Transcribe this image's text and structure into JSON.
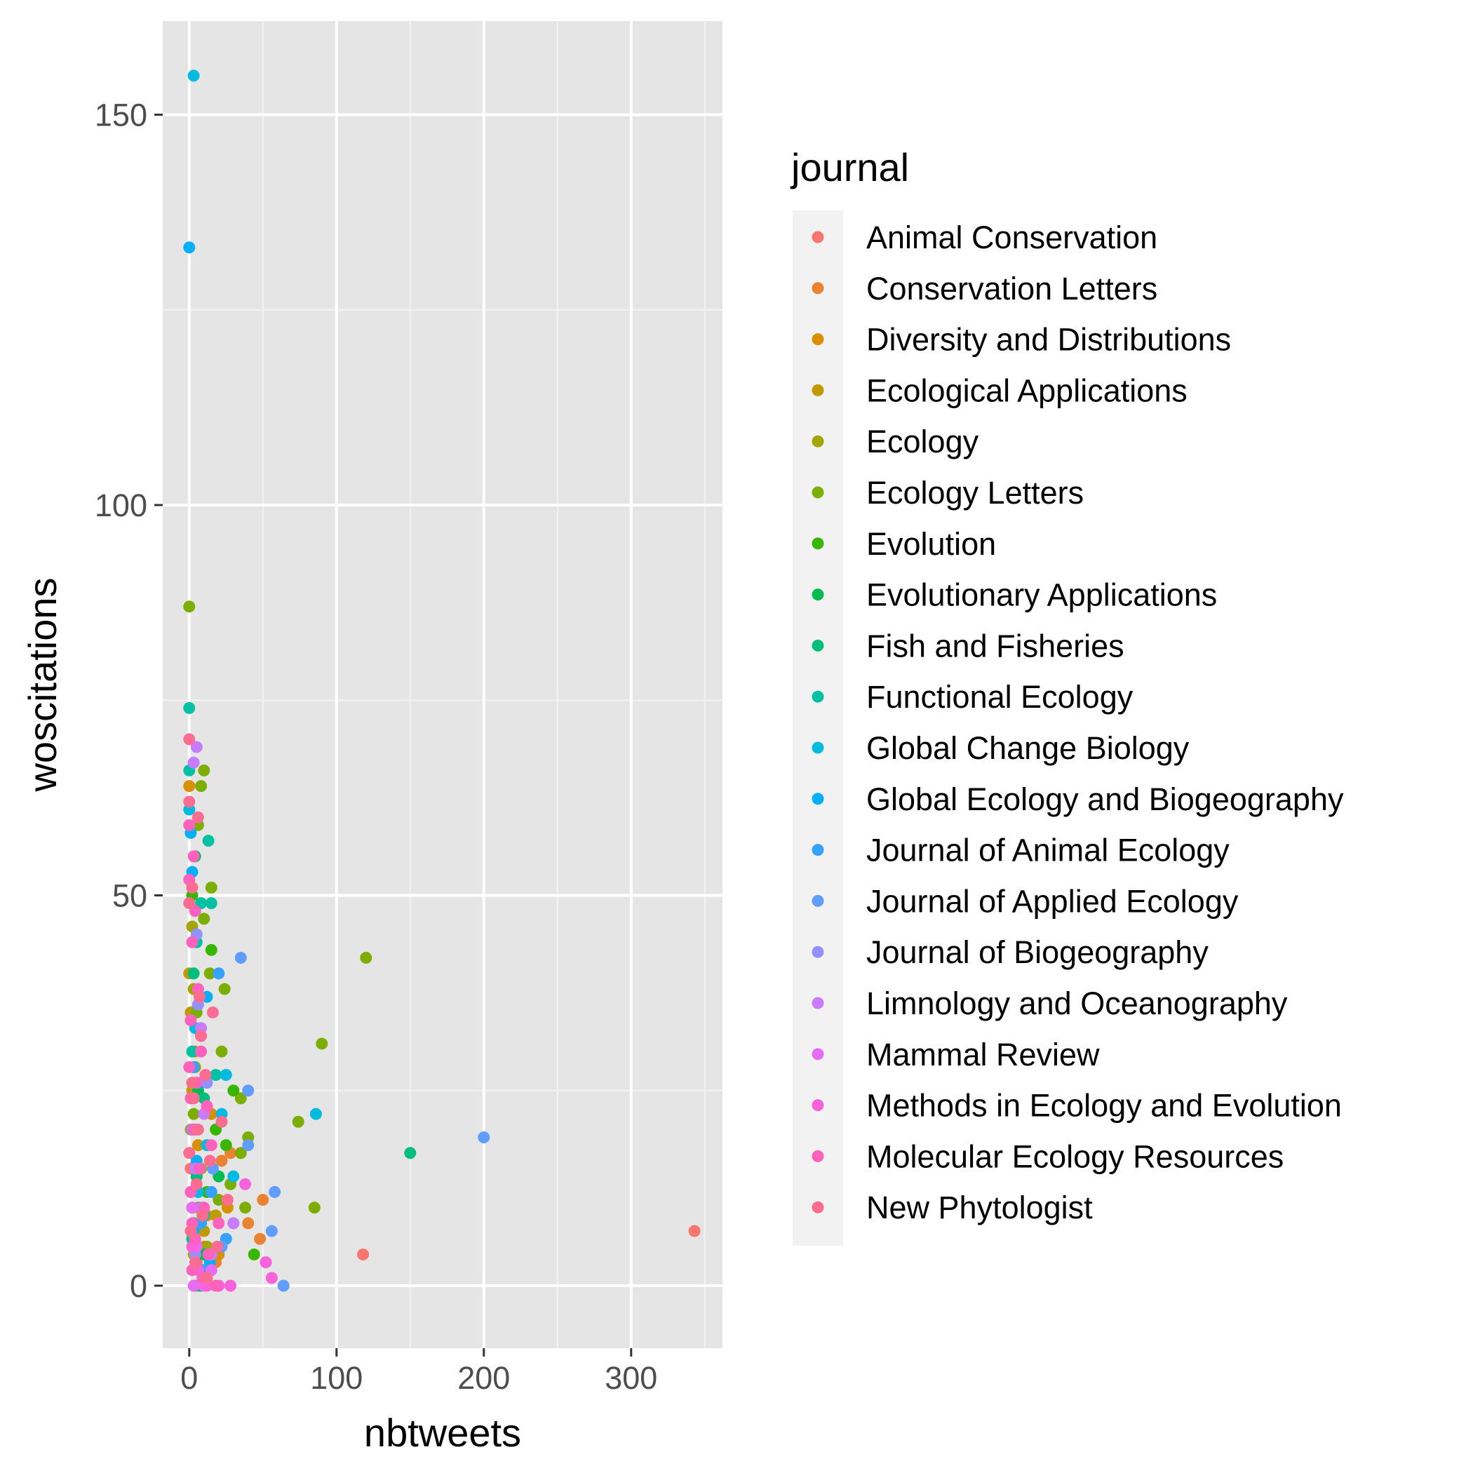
{
  "chart_data": {
    "type": "scatter",
    "xlabel": "nbtweets",
    "ylabel": "woscitations",
    "xlim": [
      -18,
      362
    ],
    "ylim": [
      -8,
      162
    ],
    "x_ticks": [
      0,
      100,
      200,
      300
    ],
    "x_tick_labels": [
      "0",
      "100",
      "200",
      "300"
    ],
    "y_ticks": [
      0,
      50,
      100,
      150
    ],
    "y_tick_labels": [
      "0",
      "50",
      "100",
      "150"
    ],
    "grid": true,
    "background": "#e5e5e5",
    "legend": {
      "title": "journal",
      "position": "right"
    },
    "series": [
      {
        "name": "Animal Conservation",
        "color": "#F8766D",
        "points": [
          [
            343,
            7
          ],
          [
            118,
            4
          ],
          [
            2,
            10
          ],
          [
            5,
            3
          ],
          [
            1,
            15
          ]
        ]
      },
      {
        "name": "Conservation Letters",
        "color": "#EA8331",
        "points": [
          [
            50,
            11
          ],
          [
            40,
            8
          ],
          [
            48,
            6
          ],
          [
            28,
            17
          ],
          [
            22,
            16
          ],
          [
            10,
            5
          ],
          [
            3,
            20
          ],
          [
            18,
            3
          ],
          [
            12,
            9
          ]
        ]
      },
      {
        "name": "Diversity and Distributions",
        "color": "#D89000",
        "points": [
          [
            0,
            64
          ],
          [
            1,
            12
          ],
          [
            20,
            4
          ],
          [
            6,
            18
          ],
          [
            3,
            8
          ],
          [
            9,
            2
          ],
          [
            15,
            22
          ],
          [
            4,
            30
          ],
          [
            26,
            10
          ]
        ]
      },
      {
        "name": "Ecological Applications",
        "color": "#C09B00",
        "points": [
          [
            0,
            40
          ],
          [
            2,
            25
          ],
          [
            5,
            14
          ],
          [
            10,
            7
          ],
          [
            3,
            4
          ],
          [
            18,
            9
          ],
          [
            1,
            35
          ],
          [
            7,
            0
          ]
        ]
      },
      {
        "name": "Ecology",
        "color": "#A3A500",
        "points": [
          [
            2,
            46
          ],
          [
            4,
            28
          ],
          [
            8,
            15
          ],
          [
            1,
            20
          ],
          [
            12,
            5
          ],
          [
            6,
            10
          ],
          [
            3,
            38
          ],
          [
            14,
            2
          ]
        ]
      },
      {
        "name": "Ecology Letters",
        "color": "#7CAE00",
        "points": [
          [
            0,
            87
          ],
          [
            120,
            42
          ],
          [
            90,
            31
          ],
          [
            74,
            21
          ],
          [
            85,
            10
          ],
          [
            10,
            66
          ],
          [
            8,
            64
          ],
          [
            6,
            59
          ],
          [
            15,
            51
          ],
          [
            10,
            47
          ],
          [
            14,
            40
          ],
          [
            22,
            30
          ],
          [
            24,
            38
          ],
          [
            35,
            24
          ],
          [
            40,
            19
          ],
          [
            35,
            17
          ],
          [
            38,
            10
          ],
          [
            30,
            8
          ],
          [
            28,
            13
          ],
          [
            20,
            11
          ],
          [
            5,
            35
          ],
          [
            3,
            22
          ]
        ]
      },
      {
        "name": "Evolution",
        "color": "#39B600",
        "points": [
          [
            15,
            43
          ],
          [
            30,
            25
          ],
          [
            18,
            20
          ],
          [
            12,
            12
          ],
          [
            25,
            18
          ],
          [
            2,
            50
          ],
          [
            44,
            4
          ],
          [
            4,
            0
          ]
        ]
      },
      {
        "name": "Evolutionary Applications",
        "color": "#00BB4E",
        "points": [
          [
            4,
            55
          ],
          [
            8,
            32
          ],
          [
            20,
            14
          ],
          [
            3,
            8
          ],
          [
            12,
            1
          ],
          [
            6,
            25
          ],
          [
            10,
            4
          ]
        ]
      },
      {
        "name": "Fish and Fisheries",
        "color": "#00BF7D",
        "points": [
          [
            150,
            17
          ],
          [
            3,
            40
          ],
          [
            10,
            24
          ],
          [
            2,
            6
          ],
          [
            5,
            14
          ],
          [
            8,
            0
          ]
        ]
      },
      {
        "name": "Functional Ecology",
        "color": "#00C1A3",
        "points": [
          [
            0,
            74
          ],
          [
            0,
            66
          ],
          [
            15,
            49
          ],
          [
            8,
            49
          ],
          [
            13,
            57
          ],
          [
            5,
            44
          ],
          [
            18,
            27
          ],
          [
            2,
            30
          ],
          [
            6,
            15
          ],
          [
            10,
            9
          ]
        ]
      },
      {
        "name": "Global Change Biology",
        "color": "#00BAE0",
        "points": [
          [
            3,
            155
          ],
          [
            86,
            22
          ],
          [
            0,
            61
          ],
          [
            25,
            27
          ],
          [
            30,
            14
          ],
          [
            22,
            22
          ],
          [
            12,
            18
          ],
          [
            6,
            12
          ],
          [
            4,
            33
          ]
        ]
      },
      {
        "name": "Global Ecology and Biogeography",
        "color": "#00B0F6",
        "points": [
          [
            0,
            133
          ],
          [
            1,
            58
          ],
          [
            2,
            53
          ],
          [
            12,
            37
          ],
          [
            8,
            26
          ],
          [
            5,
            16
          ],
          [
            3,
            7
          ],
          [
            14,
            3
          ]
        ]
      },
      {
        "name": "Journal of Animal Ecology",
        "color": "#35A2FF",
        "points": [
          [
            20,
            40
          ],
          [
            15,
            12
          ],
          [
            8,
            8
          ],
          [
            5,
            20
          ],
          [
            10,
            2
          ],
          [
            3,
            28
          ],
          [
            25,
            6
          ]
        ]
      },
      {
        "name": "Journal of Applied Ecology",
        "color": "#619CFF",
        "points": [
          [
            200,
            19
          ],
          [
            35,
            42
          ],
          [
            40,
            25
          ],
          [
            58,
            12
          ],
          [
            40,
            18
          ],
          [
            56,
            7
          ],
          [
            64,
            0
          ],
          [
            52,
            3
          ],
          [
            22,
            5
          ],
          [
            16,
            15
          ]
        ]
      },
      {
        "name": "Journal of Biogeography",
        "color": "#9590FF",
        "points": [
          [
            5,
            45
          ],
          [
            2,
            20
          ],
          [
            8,
            10
          ],
          [
            4,
            4
          ],
          [
            12,
            26
          ],
          [
            6,
            36
          ]
        ]
      },
      {
        "name": "Limnology and Oceanography",
        "color": "#C77CFF",
        "points": [
          [
            5,
            69
          ],
          [
            3,
            67
          ],
          [
            8,
            33
          ],
          [
            30,
            8
          ],
          [
            4,
            15
          ],
          [
            15,
            4
          ],
          [
            10,
            22
          ]
        ]
      },
      {
        "name": "Mammal Review",
        "color": "#E76BF3",
        "points": [
          [
            10,
            0
          ],
          [
            2,
            10
          ],
          [
            5,
            5
          ],
          [
            15,
            2
          ],
          [
            3,
            0
          ]
        ]
      },
      {
        "name": "Methods in Ecology and Evolution",
        "color": "#FA62DB",
        "points": [
          [
            38,
            13
          ],
          [
            56,
            1
          ],
          [
            52,
            3
          ],
          [
            28,
            0
          ],
          [
            20,
            0
          ],
          [
            12,
            0
          ],
          [
            6,
            2
          ],
          [
            2,
            5
          ]
        ]
      },
      {
        "name": "Molecular Ecology Resources",
        "color": "#FF62BC",
        "points": [
          [
            0,
            59
          ],
          [
            3,
            55
          ],
          [
            0,
            52
          ],
          [
            4,
            48
          ],
          [
            2,
            44
          ],
          [
            6,
            38
          ],
          [
            1,
            34
          ],
          [
            8,
            30
          ],
          [
            5,
            26
          ],
          [
            12,
            23
          ],
          [
            3,
            20
          ],
          [
            15,
            18
          ],
          [
            7,
            15
          ],
          [
            1,
            12
          ],
          [
            10,
            10
          ],
          [
            20,
            8
          ],
          [
            4,
            6
          ],
          [
            13,
            4
          ],
          [
            2,
            2
          ],
          [
            18,
            0
          ],
          [
            9,
            1
          ],
          [
            0,
            28
          ],
          [
            1,
            24
          ],
          [
            2,
            8
          ]
        ]
      },
      {
        "name": "New Phytologist",
        "color": "#FF6C91",
        "points": [
          [
            0,
            70
          ],
          [
            0,
            62
          ],
          [
            6,
            60
          ],
          [
            2,
            51
          ],
          [
            0,
            49
          ],
          [
            16,
            35
          ],
          [
            8,
            32
          ],
          [
            11,
            27
          ],
          [
            3,
            24
          ],
          [
            6,
            20
          ],
          [
            22,
            21
          ],
          [
            14,
            16
          ],
          [
            5,
            13
          ],
          [
            26,
            11
          ],
          [
            9,
            9
          ],
          [
            1,
            7
          ],
          [
            19,
            5
          ],
          [
            4,
            3
          ],
          [
            12,
            1
          ],
          [
            0,
            17
          ],
          [
            2,
            26
          ],
          [
            7,
            37
          ]
        ]
      }
    ]
  }
}
